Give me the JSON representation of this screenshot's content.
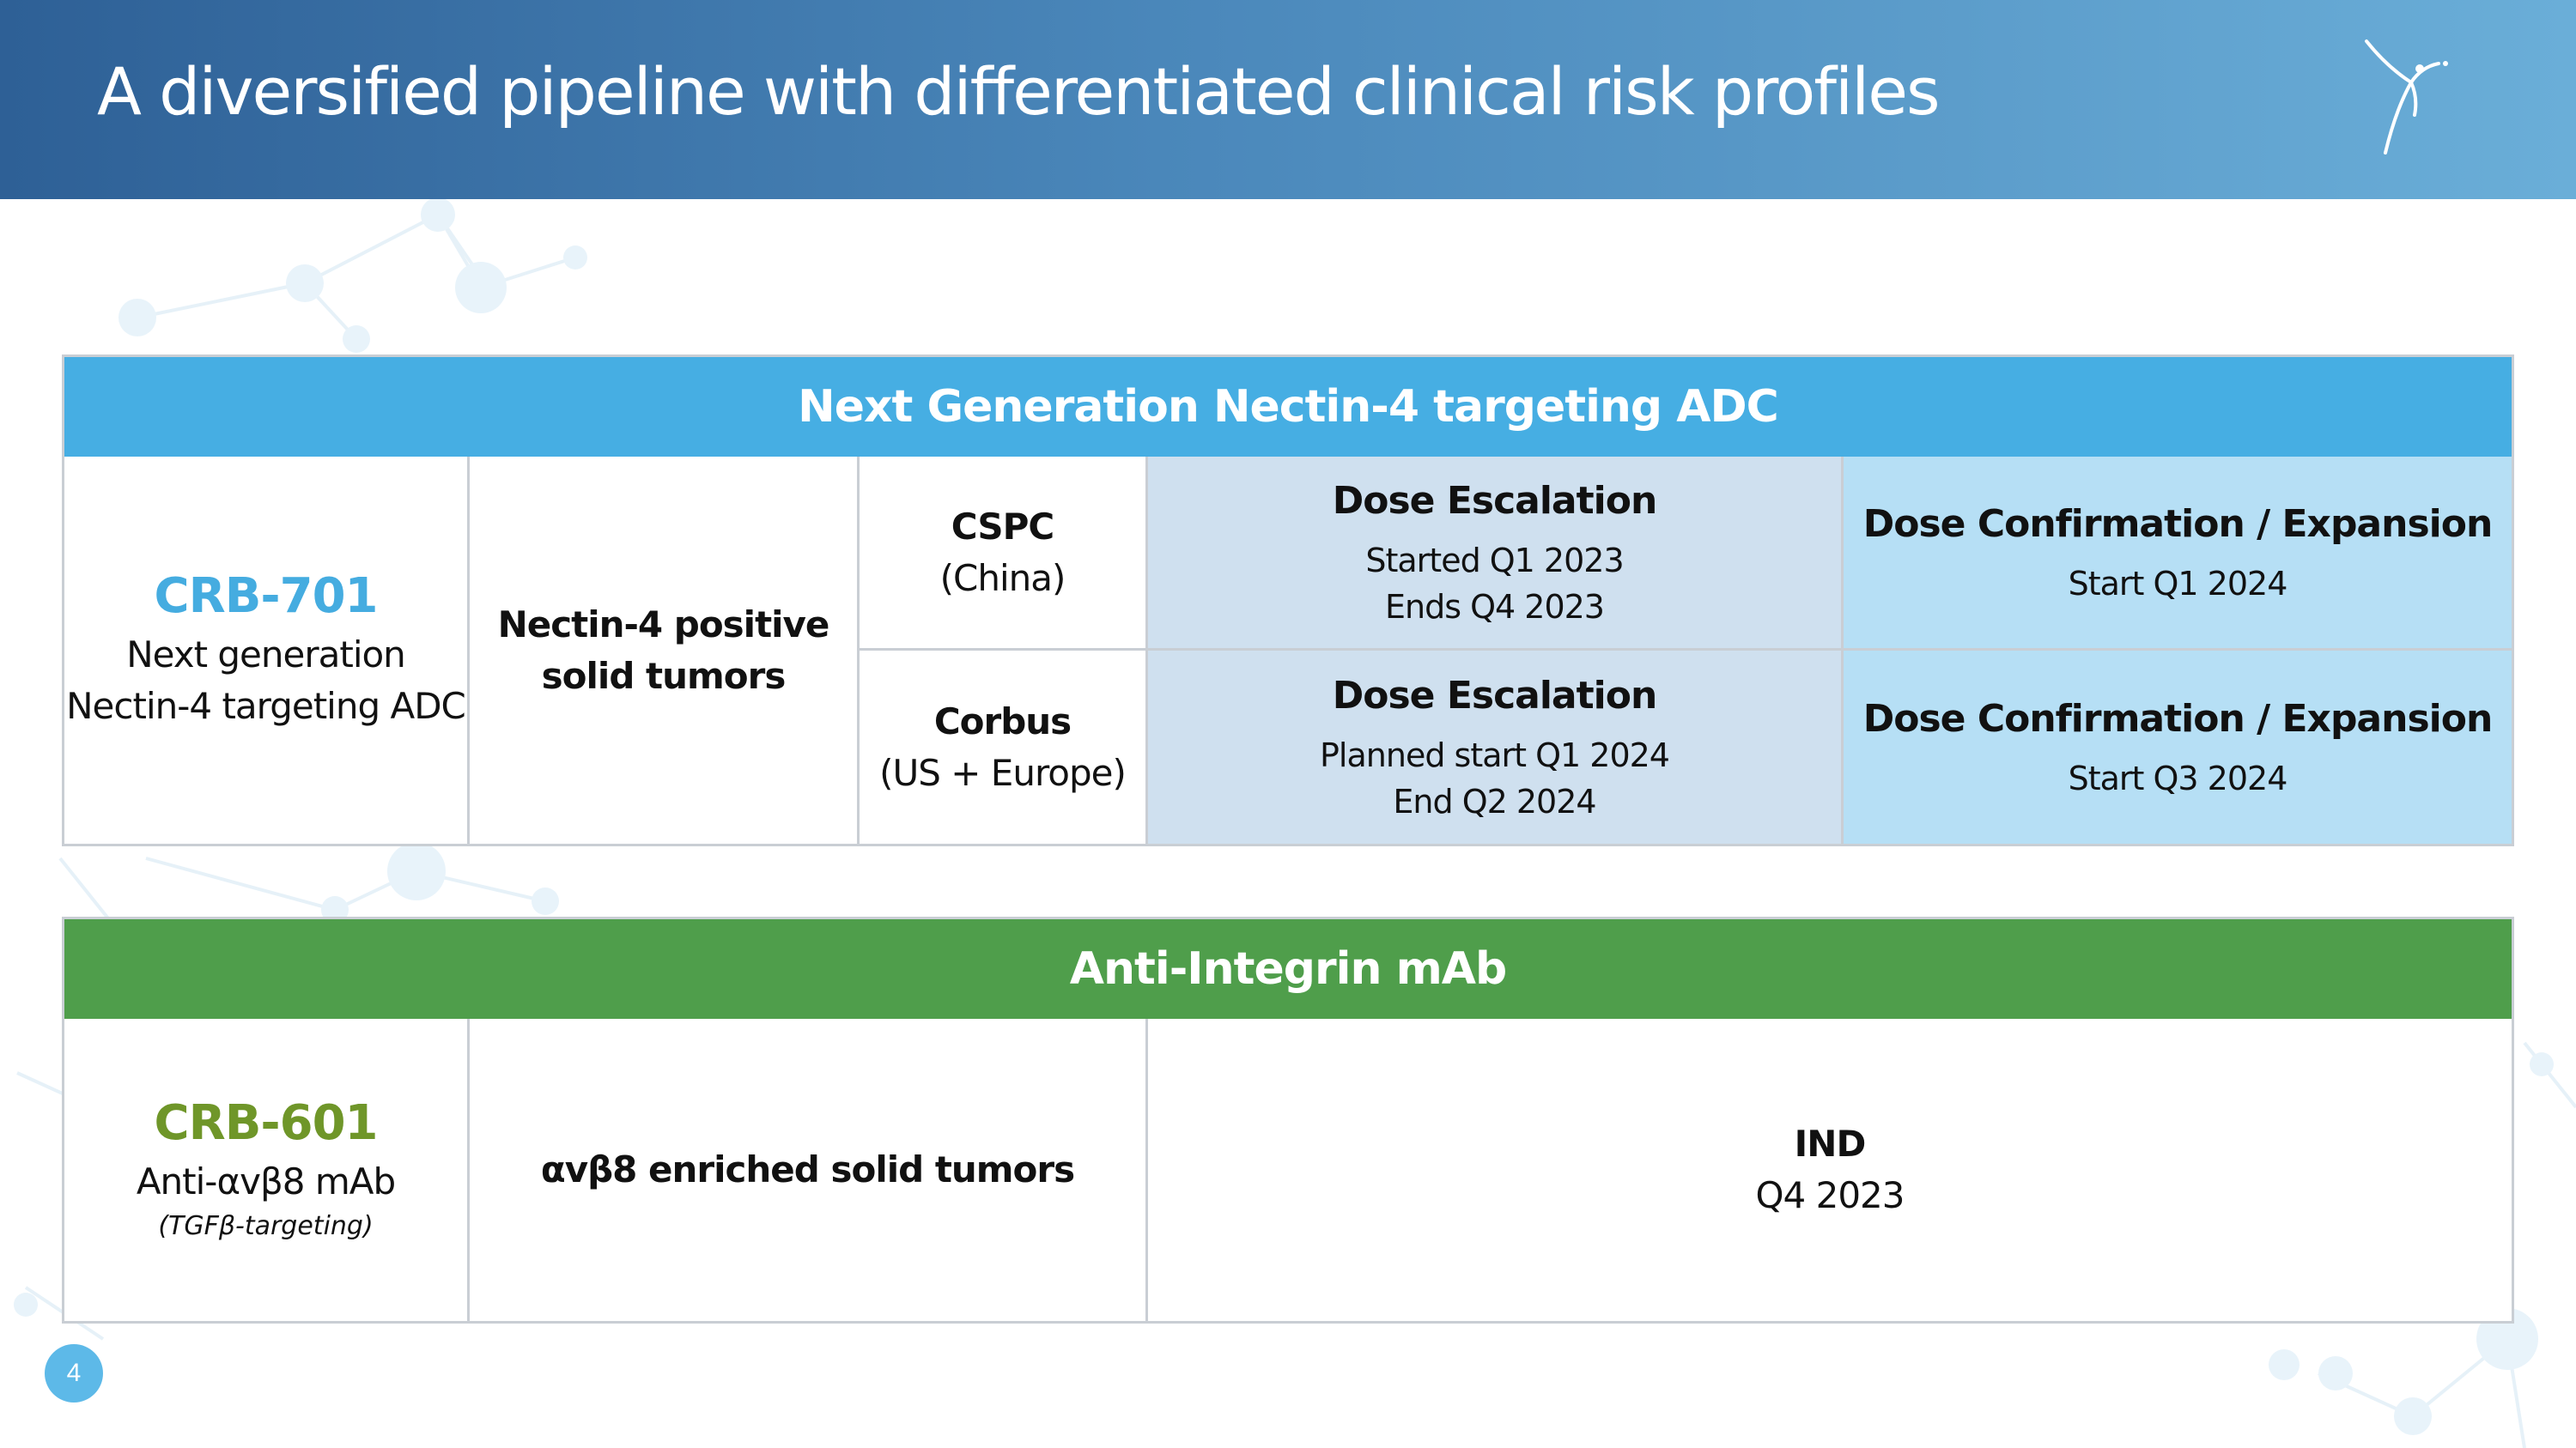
{
  "header": {
    "title": "A diversified pipeline with differentiated clinical risk profiles",
    "logo_icon": "dancing-figure-logo"
  },
  "nectin_table": {
    "band_title": "Next Generation Nectin-4 targeting ADC",
    "band_color": "#46aee3",
    "drug": {
      "code": "CRB-701",
      "description_line1": "Next generation",
      "description_line2": "Nectin-4 targeting ADC"
    },
    "indication_line1": "Nectin-4 positive",
    "indication_line2": "solid tumors",
    "rows": [
      {
        "sponsor": "CSPC",
        "region": "(China)",
        "escalation": {
          "title": "Dose Escalation",
          "line1": "Started Q1 2023",
          "line2": "Ends Q4 2023"
        },
        "expansion": {
          "title": "Dose Confirmation / Expansion",
          "line1": "Start Q1 2024"
        }
      },
      {
        "sponsor": "Corbus",
        "region": "(US + Europe)",
        "escalation": {
          "title": "Dose Escalation",
          "line1": "Planned start Q1 2024",
          "line2": "End Q2 2024"
        },
        "expansion": {
          "title": "Dose Confirmation / Expansion",
          "line1": "Start Q3 2024"
        }
      }
    ]
  },
  "integrin_table": {
    "band_title": "Anti-Integrin mAb",
    "band_color": "#4f9e4b",
    "drug": {
      "code": "CRB-601",
      "description": "Anti-αvβ8 mAb",
      "note": "(TGFβ-targeting)"
    },
    "indication": "αvβ8 enriched solid tumors",
    "milestone": {
      "title": "IND",
      "date": "Q4 2023"
    }
  },
  "footer": {
    "page_number": "4"
  },
  "colors": {
    "header_start": "#2e6096",
    "header_end": "#6aaed8",
    "escalation_fill": "#cfe0ef",
    "expansion_fill": "#b6dff5",
    "crb701_text": "#45ace0",
    "crb601_text": "#6f9629"
  }
}
